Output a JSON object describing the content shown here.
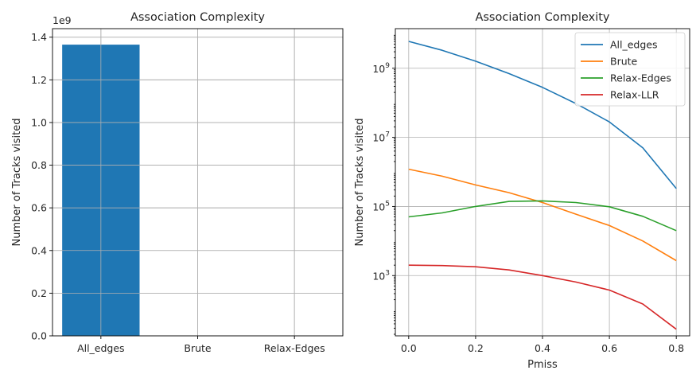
{
  "chart_data": [
    {
      "type": "bar",
      "title": "Association Complexity",
      "xlabel": "",
      "ylabel": "Number of Tracks visited",
      "categories": [
        "All_edges",
        "Brute",
        "Relax-Edges"
      ],
      "values": [
        1365000000,
        0,
        0
      ],
      "ylim": [
        0,
        1440000000
      ],
      "yticks": [
        0,
        200000000,
        400000000,
        600000000,
        800000000,
        1000000000,
        1200000000,
        1400000000
      ],
      "ytick_labels": [
        "0.0",
        "0.2",
        "0.4",
        "0.6",
        "0.8",
        "1.0",
        "1.2",
        "1.4"
      ],
      "offset_label": "1e9",
      "grid": true,
      "color": "#1f77b4"
    },
    {
      "type": "line",
      "title": "Association Complexity",
      "xlabel": "Pmiss",
      "ylabel": "Number of Tracks visited",
      "yscale": "log",
      "xlim": [
        -0.04,
        0.84
      ],
      "ylim": [
        18,
        14000000000
      ],
      "x": [
        0.0,
        0.1,
        0.2,
        0.3,
        0.4,
        0.5,
        0.6,
        0.7,
        0.8
      ],
      "xticks": [
        0.0,
        0.2,
        0.4,
        0.6,
        0.8
      ],
      "xtick_labels": [
        "0.0",
        "0.2",
        "0.4",
        "0.6",
        "0.8"
      ],
      "yticks": [
        1000,
        100000,
        10000000,
        1000000000
      ],
      "ytick_bases": [
        "10",
        "10",
        "10",
        "10"
      ],
      "ytick_exps": [
        "3",
        "5",
        "7",
        "9"
      ],
      "grid": true,
      "legend": "top-right",
      "series": [
        {
          "name": "All_edges",
          "color": "#1f77b4",
          "values": [
            6000000000,
            3300000000,
            1600000000,
            700000000,
            280000000,
            95000000,
            28000000,
            5000000,
            330000
          ]
        },
        {
          "name": "Brute",
          "color": "#ff7f0e",
          "values": [
            1200000,
            750000,
            420000,
            250000,
            130000,
            60000,
            28000,
            10000,
            2700
          ]
        },
        {
          "name": "Relax-Edges",
          "color": "#2ca02c",
          "values": [
            50000,
            65000,
            100000,
            140000,
            145000,
            130000,
            98000,
            52000,
            20000
          ]
        },
        {
          "name": "Relax-LLR",
          "color": "#d62728",
          "values": [
            2000,
            1950,
            1800,
            1450,
            1000,
            650,
            380,
            150,
            28
          ]
        }
      ]
    }
  ]
}
